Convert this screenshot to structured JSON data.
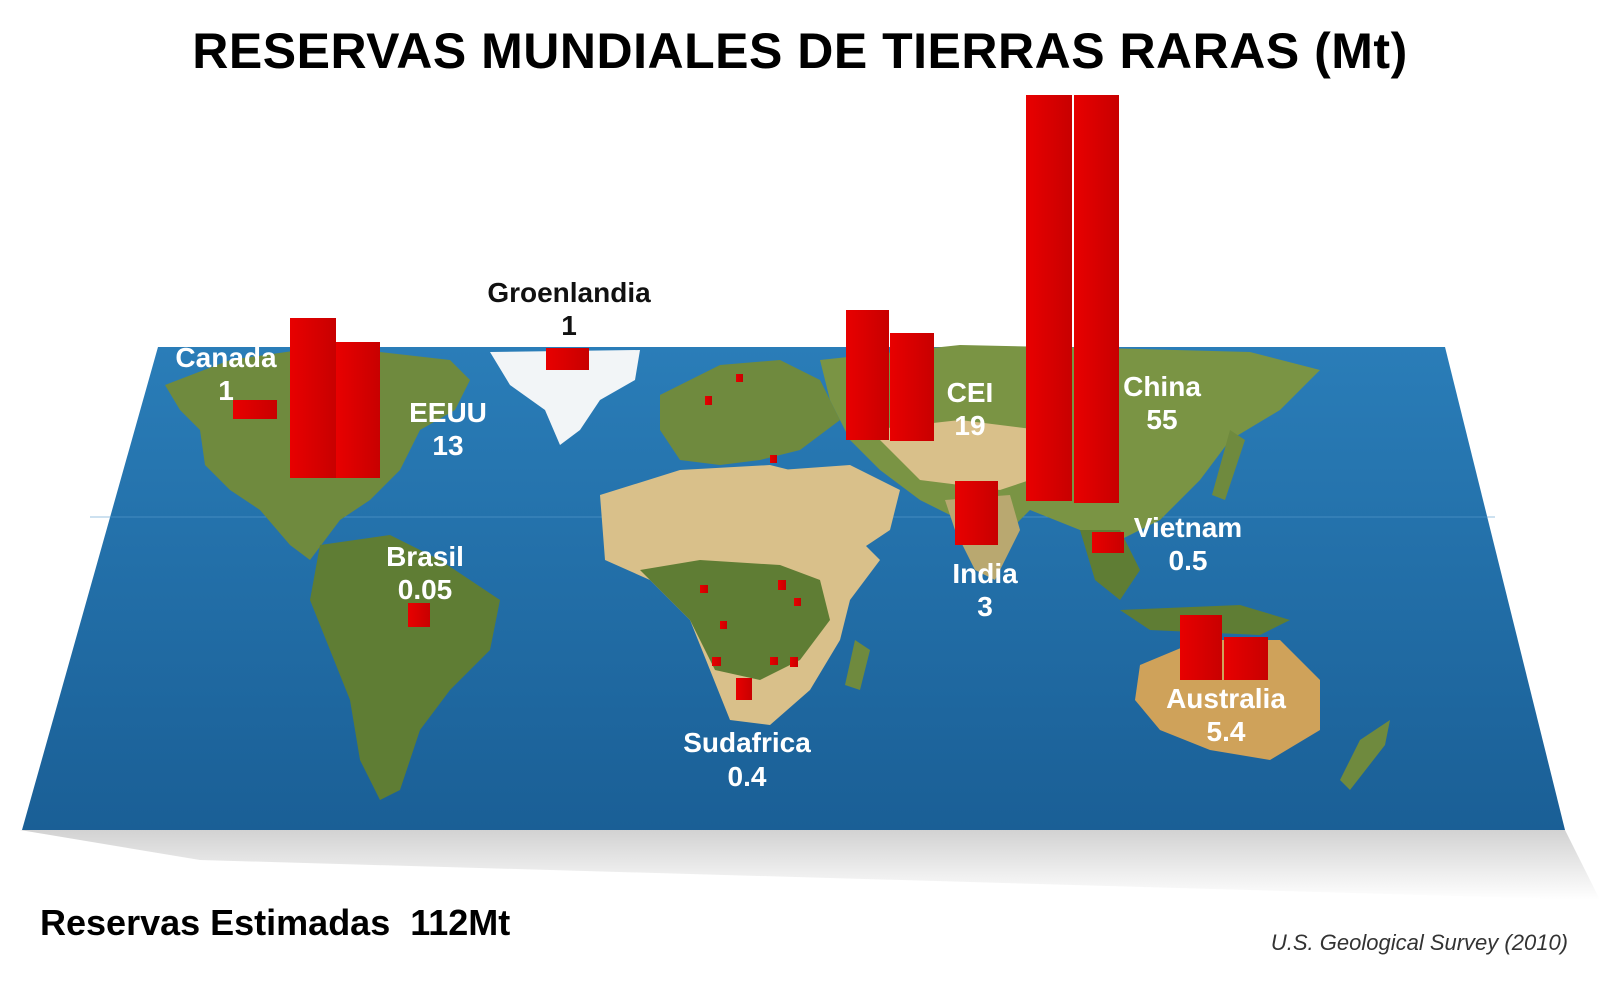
{
  "title": "RESERVAS MUNDIALES DE TIERRAS RARAS (Mt)",
  "footer": {
    "total_label": "Reservas Estimadas  112Mt",
    "source": "U.S. Geological Survey (2010)"
  },
  "colors": {
    "bar": "#e20000",
    "ocean": "#1f6fa8",
    "land": "#6f8a3e",
    "desert": "#d9c08a",
    "ice": "#f2f5f7",
    "label_light": "#ffffff",
    "label_dark": "#111111"
  },
  "regions": [
    {
      "name": "Canada",
      "value": "1"
    },
    {
      "name": "EEUU",
      "value": "13"
    },
    {
      "name": "Groenlandia",
      "value": "1"
    },
    {
      "name": "Brasil",
      "value": "0.05"
    },
    {
      "name": "Sudafrica",
      "value": "0.4"
    },
    {
      "name": "CEI",
      "value": "19"
    },
    {
      "name": "India",
      "value": "3"
    },
    {
      "name": "China",
      "value": "55"
    },
    {
      "name": "Vietnam",
      "value": "0.5"
    },
    {
      "name": "Australia",
      "value": "5.4"
    }
  ]
}
